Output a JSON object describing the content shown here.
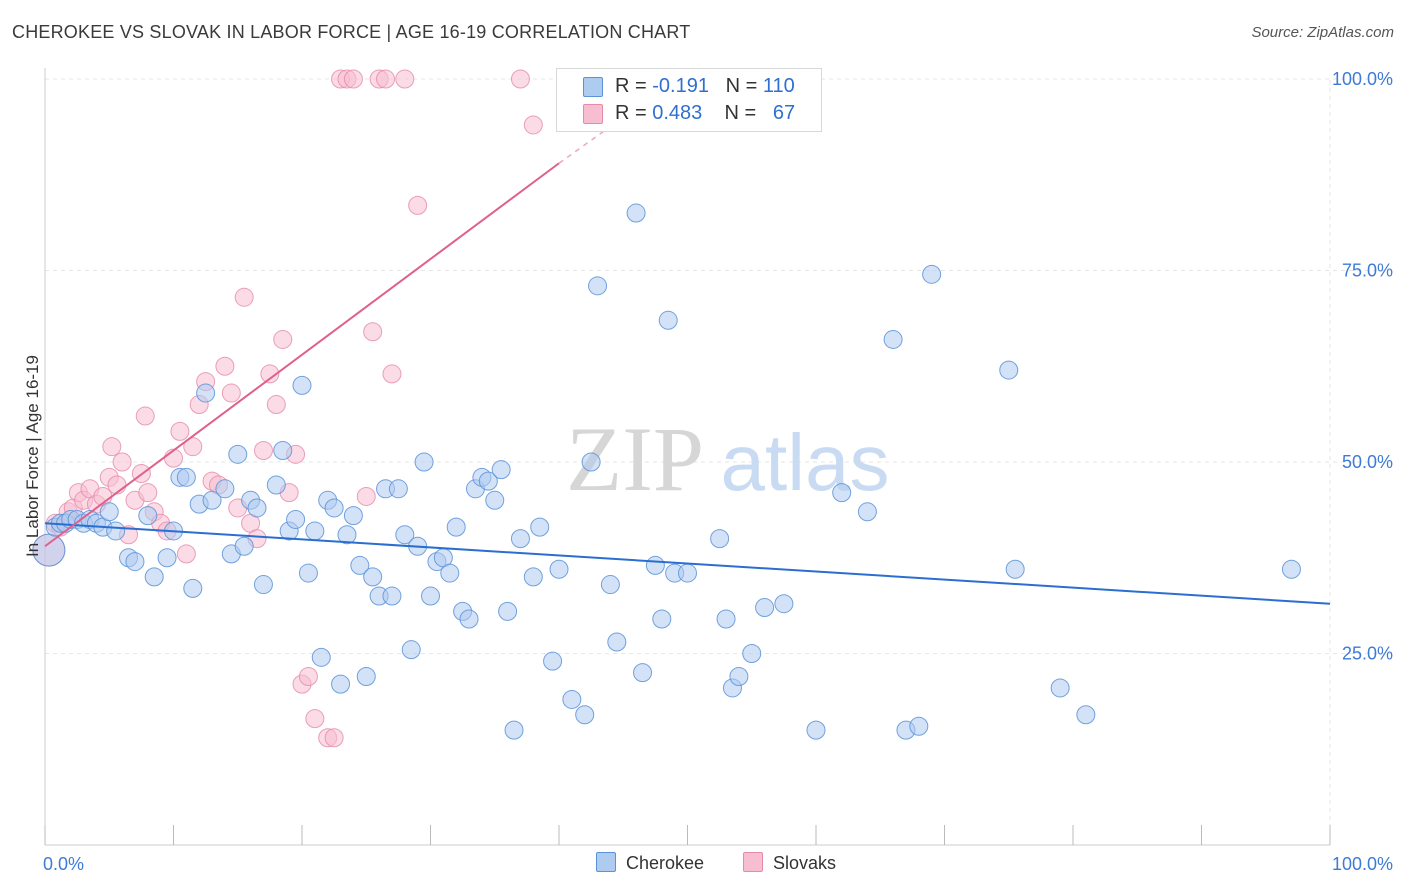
{
  "title": "CHEROKEE VS SLOVAK IN LABOR FORCE | AGE 16-19 CORRELATION CHART",
  "source": "Source: ZipAtlas.com",
  "watermark": {
    "zip": "ZIP",
    "atlas": "atlas"
  },
  "legend_top": {
    "row1": {
      "r_label": "R = ",
      "r_value": "-0.191",
      "n_label": "N = ",
      "n_value": "110"
    },
    "row2": {
      "r_label": "R = ",
      "r_value": "0.483",
      "n_label": "N = ",
      "n_value": "67"
    }
  },
  "legend_bottom": {
    "cherokee": "Cherokee",
    "slovaks": "Slovaks"
  },
  "colors": {
    "cherokee_fill": "#aecbf0",
    "cherokee_stroke": "#5b93d8",
    "cherokee_line": "#2a6fd0",
    "slovaks_fill": "#f7bdd0",
    "slovaks_stroke": "#e58aaa",
    "slovaks_line": "#e0608c",
    "tick_blue": "#3d7bd6"
  },
  "chart_data": {
    "type": "scatter",
    "title": "CHEROKEE VS SLOVAK IN LABOR FORCE | AGE 16-19 CORRELATION CHART",
    "xlabel": "",
    "ylabel": "In Labor Force | Age 16-19",
    "xlim": [
      0,
      100
    ],
    "ylim": [
      0,
      105
    ],
    "x_tick_labels": [
      "0.0%",
      "100.0%"
    ],
    "y_ticks": [
      25,
      50,
      75,
      100
    ],
    "y_tick_labels": [
      "25.0%",
      "50.0%",
      "75.0%",
      "100.0%"
    ],
    "grid": true,
    "series": [
      {
        "name": "Cherokee",
        "r": -0.191,
        "n": 110,
        "trend": {
          "x": [
            0,
            100
          ],
          "y": [
            42.0,
            31.5
          ]
        },
        "points": [
          [
            0.3,
            38.5
          ],
          [
            0.8,
            41.5
          ],
          [
            1.2,
            42
          ],
          [
            1.6,
            42
          ],
          [
            2,
            42.5
          ],
          [
            2.5,
            42.5
          ],
          [
            3,
            42
          ],
          [
            3.5,
            42.5
          ],
          [
            4,
            42
          ],
          [
            4.5,
            41.5
          ],
          [
            5,
            43.5
          ],
          [
            5.5,
            41
          ],
          [
            6.5,
            37.5
          ],
          [
            7,
            37
          ],
          [
            8,
            43
          ],
          [
            8.5,
            35
          ],
          [
            9.5,
            37.5
          ],
          [
            10,
            41
          ],
          [
            10.5,
            48
          ],
          [
            11,
            48
          ],
          [
            11.5,
            33.5
          ],
          [
            12,
            44.5
          ],
          [
            12.5,
            59
          ],
          [
            13,
            45
          ],
          [
            14,
            46.5
          ],
          [
            14.5,
            38
          ],
          [
            15,
            51
          ],
          [
            15.5,
            39
          ],
          [
            16,
            45
          ],
          [
            16.5,
            44
          ],
          [
            17,
            34
          ],
          [
            18,
            47
          ],
          [
            18.5,
            51.5
          ],
          [
            19,
            41
          ],
          [
            19.5,
            42.5
          ],
          [
            20,
            60
          ],
          [
            20.5,
            35.5
          ],
          [
            21,
            41
          ],
          [
            21.5,
            24.5
          ],
          [
            22,
            45
          ],
          [
            22.5,
            44
          ],
          [
            23,
            21
          ],
          [
            23.5,
            40.5
          ],
          [
            24,
            43
          ],
          [
            24.5,
            36.5
          ],
          [
            25,
            22
          ],
          [
            25.5,
            35
          ],
          [
            26,
            32.5
          ],
          [
            26.5,
            46.5
          ],
          [
            27,
            32.5
          ],
          [
            27.5,
            46.5
          ],
          [
            28,
            40.5
          ],
          [
            28.5,
            25.5
          ],
          [
            29,
            39
          ],
          [
            29.5,
            50
          ],
          [
            30,
            32.5
          ],
          [
            30.5,
            37
          ],
          [
            31,
            37.5
          ],
          [
            31.5,
            35.5
          ],
          [
            32,
            41.5
          ],
          [
            32.5,
            30.5
          ],
          [
            33,
            29.5
          ],
          [
            33.5,
            46.5
          ],
          [
            34,
            48
          ],
          [
            34.5,
            47.5
          ],
          [
            35,
            45
          ],
          [
            35.5,
            49
          ],
          [
            36,
            30.5
          ],
          [
            36.5,
            15
          ],
          [
            37,
            40
          ],
          [
            38,
            35
          ],
          [
            38.5,
            41.5
          ],
          [
            39.5,
            24
          ],
          [
            40,
            36
          ],
          [
            41,
            19
          ],
          [
            42,
            17
          ],
          [
            42.5,
            50
          ],
          [
            43,
            73
          ],
          [
            44,
            34
          ],
          [
            44.5,
            26.5
          ],
          [
            46,
            82.5
          ],
          [
            46.5,
            22.5
          ],
          [
            47.5,
            36.5
          ],
          [
            48,
            29.5
          ],
          [
            48.5,
            68.5
          ],
          [
            49,
            35.5
          ],
          [
            50,
            35.5
          ],
          [
            52.5,
            40
          ],
          [
            53,
            29.5
          ],
          [
            53.5,
            20.5
          ],
          [
            54,
            22
          ],
          [
            55,
            25
          ],
          [
            56,
            31
          ],
          [
            57.5,
            31.5
          ],
          [
            60,
            15
          ],
          [
            62,
            46
          ],
          [
            64,
            43.5
          ],
          [
            66,
            66
          ],
          [
            67,
            15
          ],
          [
            68,
            15.5
          ],
          [
            69,
            74.5
          ],
          [
            75,
            62
          ],
          [
            75.5,
            36
          ],
          [
            79,
            20.5
          ],
          [
            81,
            17
          ],
          [
            97,
            36
          ]
        ]
      },
      {
        "name": "Slovaks",
        "r": 0.483,
        "n": 67,
        "trend": {
          "x": [
            0,
            40
          ],
          "y": [
            39.0,
            89.0
          ]
        },
        "trend_extended": {
          "x": [
            40,
            45
          ],
          "y": [
            89.0,
            95.0
          ]
        },
        "points": [
          [
            0.3,
            38.5
          ],
          [
            0.8,
            42
          ],
          [
            1.2,
            41.5
          ],
          [
            1.8,
            43.5
          ],
          [
            2.2,
            44
          ],
          [
            2.6,
            46
          ],
          [
            3,
            45
          ],
          [
            3.5,
            46.5
          ],
          [
            4,
            44.5
          ],
          [
            4.5,
            45.5
          ],
          [
            5,
            48
          ],
          [
            5.2,
            52
          ],
          [
            5.6,
            47
          ],
          [
            6,
            50
          ],
          [
            6.5,
            40.5
          ],
          [
            7,
            45
          ],
          [
            7.5,
            48.5
          ],
          [
            7.8,
            56
          ],
          [
            8,
            46
          ],
          [
            8.5,
            43.5
          ],
          [
            9,
            42
          ],
          [
            9.5,
            41
          ],
          [
            10,
            50.5
          ],
          [
            10.5,
            54
          ],
          [
            11,
            38
          ],
          [
            11.5,
            52
          ],
          [
            12,
            57.5
          ],
          [
            12.5,
            60.5
          ],
          [
            13,
            47.5
          ],
          [
            13.5,
            47
          ],
          [
            14,
            62.5
          ],
          [
            14.5,
            59
          ],
          [
            15,
            44
          ],
          [
            15.5,
            71.5
          ],
          [
            16,
            42
          ],
          [
            16.5,
            40
          ],
          [
            17,
            51.5
          ],
          [
            17.5,
            61.5
          ],
          [
            18,
            57.5
          ],
          [
            18.5,
            66
          ],
          [
            19,
            46
          ],
          [
            19.5,
            51
          ],
          [
            20,
            21
          ],
          [
            20.5,
            22
          ],
          [
            21,
            16.5
          ],
          [
            22,
            14
          ],
          [
            22.5,
            14
          ],
          [
            23,
            100
          ],
          [
            23.5,
            100
          ],
          [
            24,
            100
          ],
          [
            25,
            45.5
          ],
          [
            25.5,
            67
          ],
          [
            26,
            100
          ],
          [
            26.5,
            100
          ],
          [
            27,
            61.5
          ],
          [
            28,
            100
          ],
          [
            29,
            83.5
          ],
          [
            37,
            100
          ],
          [
            38,
            94
          ]
        ]
      }
    ]
  }
}
